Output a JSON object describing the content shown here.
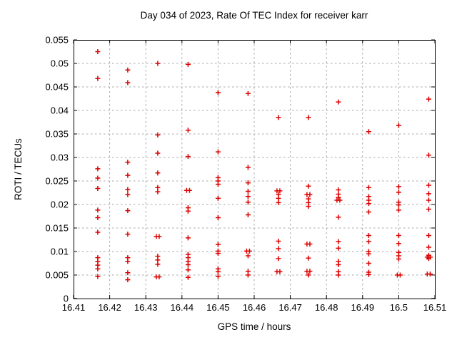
{
  "chart_data": {
    "type": "scatter",
    "title": "Day 034 of 2023, Rate Of TEC Index for receiver karr",
    "xlabel": "GPS time / hours",
    "ylabel": "ROTI / TECUs",
    "xlim": [
      16.41,
      16.51
    ],
    "ylim": [
      0,
      0.055
    ],
    "xticks": [
      16.41,
      16.42,
      16.43,
      16.44,
      16.45,
      16.46,
      16.47,
      16.48,
      16.49,
      16.5,
      16.51
    ],
    "xtick_labels": [
      "16.41",
      "16.42",
      "16.43",
      "16.44",
      "16.45",
      "16.46",
      "16.47",
      "16.48",
      "16.49",
      "16.5",
      "16.51"
    ],
    "yticks": [
      0,
      0.005,
      0.01,
      0.015,
      0.02,
      0.025,
      0.03,
      0.035,
      0.04,
      0.045,
      0.05,
      0.055
    ],
    "ytick_labels": [
      "0",
      "0.005",
      "0.01",
      "0.015",
      "0.02",
      "0.025",
      "0.03",
      "0.035",
      "0.04",
      "0.045",
      "0.05",
      "0.055"
    ],
    "grid": true,
    "legend": "none",
    "marker": "plus",
    "marker_color": "#dd0000",
    "grid_color": "#a8a8a8",
    "frame_color": "#000000",
    "series": [
      {
        "name": "ROTI",
        "points": [
          [
            16.4167,
            0.0525
          ],
          [
            16.4167,
            0.0468
          ],
          [
            16.4167,
            0.0276
          ],
          [
            16.4167,
            0.0256
          ],
          [
            16.4167,
            0.0234
          ],
          [
            16.4167,
            0.0188
          ],
          [
            16.4167,
            0.0172
          ],
          [
            16.4167,
            0.0141
          ],
          [
            16.4167,
            0.0087
          ],
          [
            16.4167,
            0.0079
          ],
          [
            16.4167,
            0.0071
          ],
          [
            16.4167,
            0.0063
          ],
          [
            16.4167,
            0.0047
          ],
          [
            16.425,
            0.0486
          ],
          [
            16.425,
            0.0459
          ],
          [
            16.425,
            0.029
          ],
          [
            16.425,
            0.0262
          ],
          [
            16.425,
            0.0232
          ],
          [
            16.425,
            0.0221
          ],
          [
            16.425,
            0.0187
          ],
          [
            16.425,
            0.0137
          ],
          [
            16.425,
            0.0087
          ],
          [
            16.425,
            0.0079
          ],
          [
            16.425,
            0.0055
          ],
          [
            16.425,
            0.004
          ],
          [
            16.4333,
            0.05
          ],
          [
            16.4333,
            0.0348
          ],
          [
            16.4333,
            0.0309
          ],
          [
            16.4333,
            0.0267
          ],
          [
            16.4333,
            0.0236
          ],
          [
            16.4333,
            0.0227
          ],
          [
            16.4329,
            0.0132
          ],
          [
            16.4337,
            0.0132
          ],
          [
            16.4333,
            0.009
          ],
          [
            16.4333,
            0.0082
          ],
          [
            16.4333,
            0.0073
          ],
          [
            16.4329,
            0.0046
          ],
          [
            16.4337,
            0.0046
          ],
          [
            16.4417,
            0.0498
          ],
          [
            16.4417,
            0.0358
          ],
          [
            16.4417,
            0.0302
          ],
          [
            16.4413,
            0.023
          ],
          [
            16.4421,
            0.023
          ],
          [
            16.4417,
            0.0193
          ],
          [
            16.4417,
            0.0186
          ],
          [
            16.4417,
            0.0129
          ],
          [
            16.4417,
            0.0094
          ],
          [
            16.4417,
            0.0087
          ],
          [
            16.4417,
            0.0079
          ],
          [
            16.4417,
            0.0072
          ],
          [
            16.4417,
            0.0061
          ],
          [
            16.4417,
            0.0045
          ],
          [
            16.45,
            0.0438
          ],
          [
            16.45,
            0.0312
          ],
          [
            16.45,
            0.0257
          ],
          [
            16.45,
            0.025
          ],
          [
            16.45,
            0.0243
          ],
          [
            16.45,
            0.0213
          ],
          [
            16.45,
            0.0172
          ],
          [
            16.45,
            0.0115
          ],
          [
            16.45,
            0.0101
          ],
          [
            16.45,
            0.0096
          ],
          [
            16.45,
            0.0063
          ],
          [
            16.45,
            0.0057
          ],
          [
            16.45,
            0.0047
          ],
          [
            16.4583,
            0.0436
          ],
          [
            16.4583,
            0.0279
          ],
          [
            16.4583,
            0.0246
          ],
          [
            16.4583,
            0.0228
          ],
          [
            16.4583,
            0.0217
          ],
          [
            16.4583,
            0.0205
          ],
          [
            16.4583,
            0.0178
          ],
          [
            16.4579,
            0.0101
          ],
          [
            16.4587,
            0.0101
          ],
          [
            16.4583,
            0.0091
          ],
          [
            16.4583,
            0.0058
          ],
          [
            16.4583,
            0.005
          ],
          [
            16.4667,
            0.0385
          ],
          [
            16.4663,
            0.0229
          ],
          [
            16.4671,
            0.0229
          ],
          [
            16.4667,
            0.0221
          ],
          [
            16.4667,
            0.0213
          ],
          [
            16.4667,
            0.0204
          ],
          [
            16.4667,
            0.0122
          ],
          [
            16.4667,
            0.0106
          ],
          [
            16.4667,
            0.0085
          ],
          [
            16.4663,
            0.0057
          ],
          [
            16.4671,
            0.0057
          ],
          [
            16.475,
            0.0385
          ],
          [
            16.475,
            0.0239
          ],
          [
            16.4746,
            0.0221
          ],
          [
            16.4754,
            0.0221
          ],
          [
            16.475,
            0.0212
          ],
          [
            16.475,
            0.0204
          ],
          [
            16.475,
            0.0196
          ],
          [
            16.4746,
            0.0116
          ],
          [
            16.4754,
            0.0116
          ],
          [
            16.475,
            0.0086
          ],
          [
            16.4746,
            0.0058
          ],
          [
            16.4754,
            0.0058
          ],
          [
            16.475,
            0.005
          ],
          [
            16.4833,
            0.0418
          ],
          [
            16.4833,
            0.0231
          ],
          [
            16.4833,
            0.0222
          ],
          [
            16.4833,
            0.0215
          ],
          [
            16.4829,
            0.0209
          ],
          [
            16.4837,
            0.0209
          ],
          [
            16.4833,
            0.0173
          ],
          [
            16.4833,
            0.0121
          ],
          [
            16.4833,
            0.0107
          ],
          [
            16.4833,
            0.0079
          ],
          [
            16.4833,
            0.0072
          ],
          [
            16.4833,
            0.0057
          ],
          [
            16.4833,
            0.005
          ],
          [
            16.4917,
            0.0355
          ],
          [
            16.4917,
            0.0236
          ],
          [
            16.4917,
            0.0217
          ],
          [
            16.4917,
            0.0209
          ],
          [
            16.4917,
            0.0202
          ],
          [
            16.4917,
            0.0184
          ],
          [
            16.4917,
            0.0134
          ],
          [
            16.4917,
            0.0121
          ],
          [
            16.4917,
            0.01
          ],
          [
            16.4917,
            0.0095
          ],
          [
            16.4917,
            0.0075
          ],
          [
            16.4917,
            0.0056
          ],
          [
            16.4917,
            0.0051
          ],
          [
            16.5,
            0.0368
          ],
          [
            16.5,
            0.0238
          ],
          [
            16.5,
            0.0226
          ],
          [
            16.5,
            0.0205
          ],
          [
            16.5,
            0.0199
          ],
          [
            16.5,
            0.0188
          ],
          [
            16.5,
            0.0134
          ],
          [
            16.5,
            0.0117
          ],
          [
            16.5,
            0.0098
          ],
          [
            16.5,
            0.0091
          ],
          [
            16.5,
            0.0084
          ],
          [
            16.4996,
            0.005
          ],
          [
            16.5004,
            0.005
          ],
          [
            16.5083,
            0.0424
          ],
          [
            16.5083,
            0.0305
          ],
          [
            16.5083,
            0.0241
          ],
          [
            16.5083,
            0.0223
          ],
          [
            16.5083,
            0.0209
          ],
          [
            16.5083,
            0.019
          ],
          [
            16.5083,
            0.0134
          ],
          [
            16.5083,
            0.0109
          ],
          [
            16.5083,
            0.0092
          ],
          [
            16.5079,
            0.0088
          ],
          [
            16.5087,
            0.0088
          ],
          [
            16.5083,
            0.0085
          ],
          [
            16.5079,
            0.0052
          ],
          [
            16.5087,
            0.0052
          ]
        ]
      }
    ]
  }
}
